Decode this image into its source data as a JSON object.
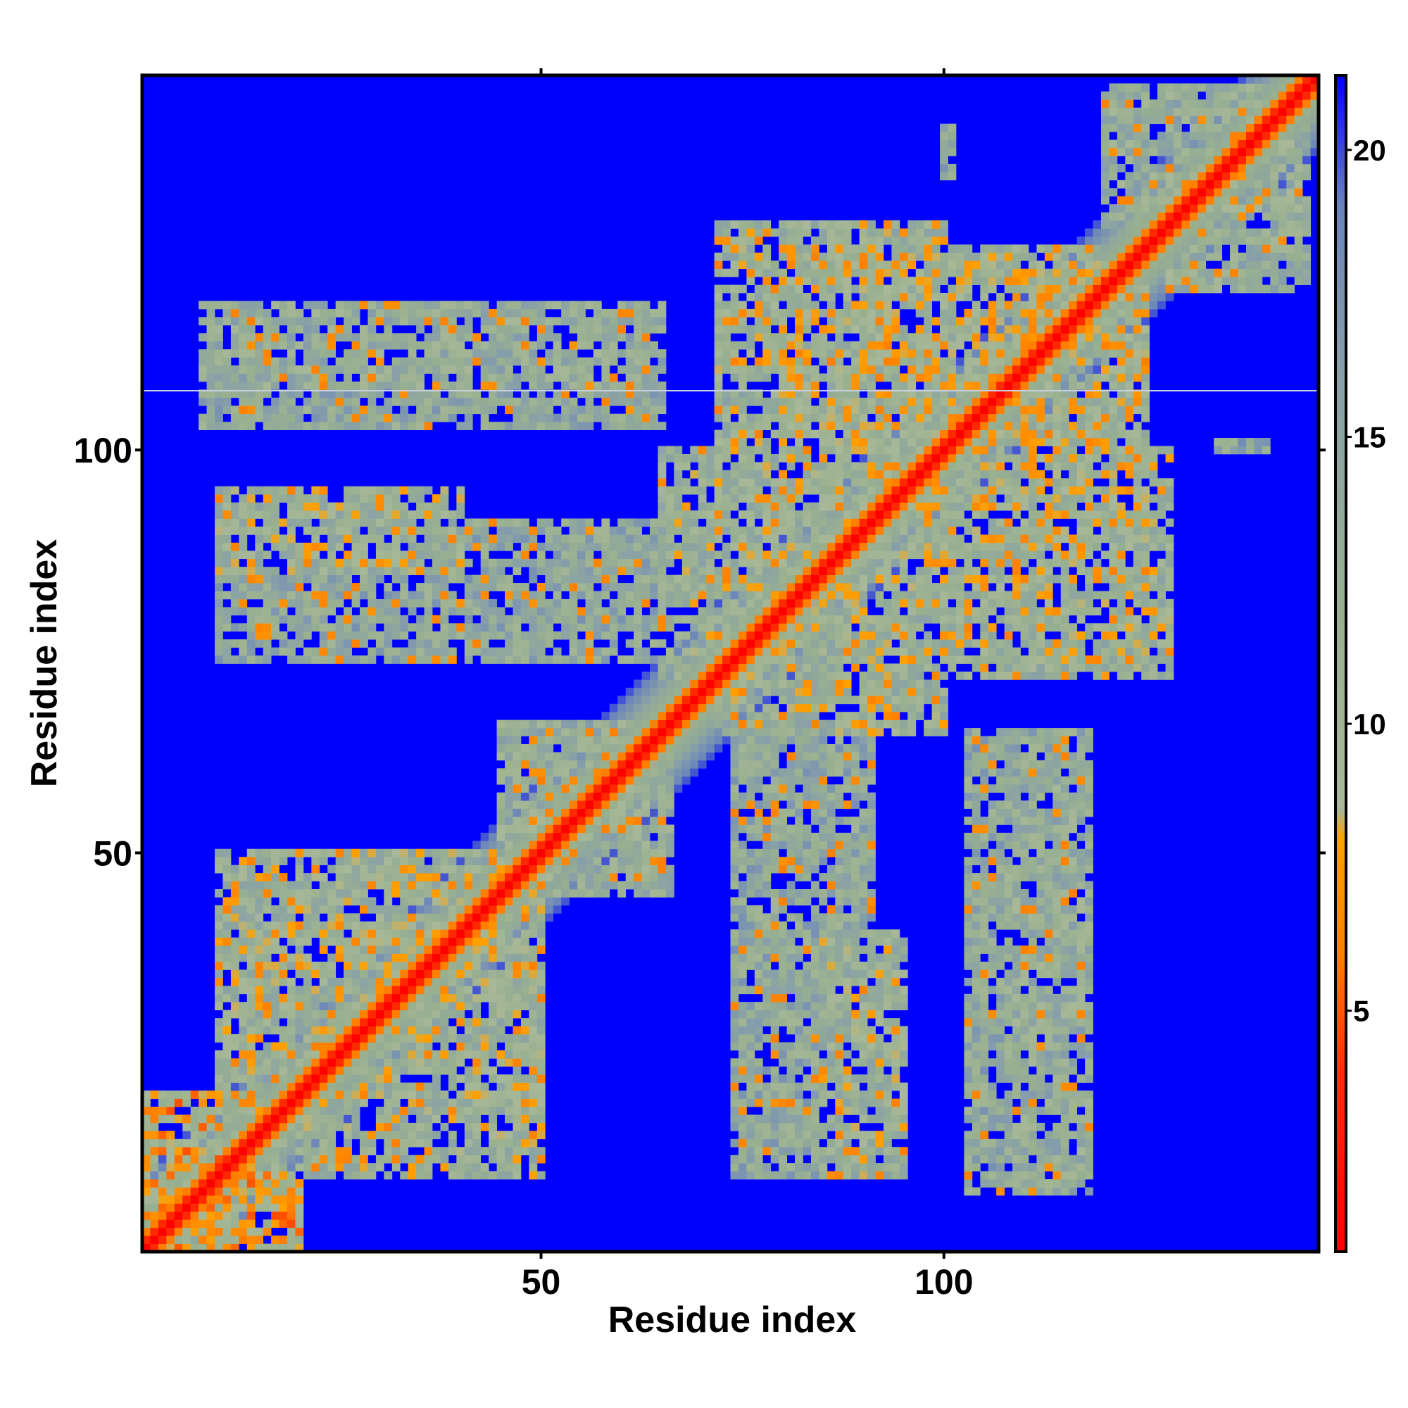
{
  "chart_data": {
    "type": "heatmap",
    "title": "",
    "xlabel": "Residue index",
    "ylabel": "Residue index",
    "xlim": [
      1,
      146
    ],
    "ylim": [
      1,
      146
    ],
    "x_ticks": [
      50,
      100
    ],
    "y_ticks": [
      50,
      100
    ],
    "colorbar": {
      "ticks": [
        5,
        10,
        15,
        20
      ],
      "range": [
        0.8,
        21.3
      ],
      "stops": [
        {
          "value": 0.8,
          "color": "#ff0000"
        },
        {
          "value": 4.0,
          "color": "#ff3000"
        },
        {
          "value": 6.0,
          "color": "#ff8000"
        },
        {
          "value": 8.0,
          "color": "#ffa000"
        },
        {
          "value": 8.5,
          "color": "#a8b898"
        },
        {
          "value": 12.0,
          "color": "#98b090"
        },
        {
          "value": 16.0,
          "color": "#88a0a8"
        },
        {
          "value": 19.0,
          "color": "#6a84bc"
        },
        {
          "value": 21.3,
          "color": "#0000ff"
        }
      ]
    },
    "background_color": "#0000ff",
    "grid": false,
    "legend": "colorbar-right",
    "description_values": {
      "diagonal_distance": 1,
      "contact_regions": [
        {
          "x": [
            1,
            10
          ],
          "y": [
            1,
            20
          ],
          "level": 9
        },
        {
          "x": [
            10,
            50
          ],
          "y": [
            10,
            50
          ],
          "level": 12
        },
        {
          "x": [
            50,
            66
          ],
          "y": [
            45,
            65
          ],
          "level": 13
        },
        {
          "x": [
            74,
            91
          ],
          "y": [
            10,
            70
          ],
          "level": 14
        },
        {
          "x": [
            103,
            118
          ],
          "y": [
            8,
            65
          ],
          "level": 14
        },
        {
          "x": [
            10,
            40
          ],
          "y": [
            85,
            95
          ],
          "level": 12
        },
        {
          "x": [
            10,
            60
          ],
          "y": [
            108,
            118
          ],
          "level": 13
        },
        {
          "x": [
            72,
            100
          ],
          "y": [
            65,
            128
          ],
          "level": 12
        },
        {
          "x": [
            95,
            125
          ],
          "y": [
            80,
            120
          ],
          "level": 11
        },
        {
          "x": [
            120,
            145
          ],
          "y": [
            128,
            145
          ],
          "level": 13
        },
        {
          "x": [
            134,
            140
          ],
          "y": [
            100,
            101
          ],
          "level": 15
        }
      ]
    }
  }
}
